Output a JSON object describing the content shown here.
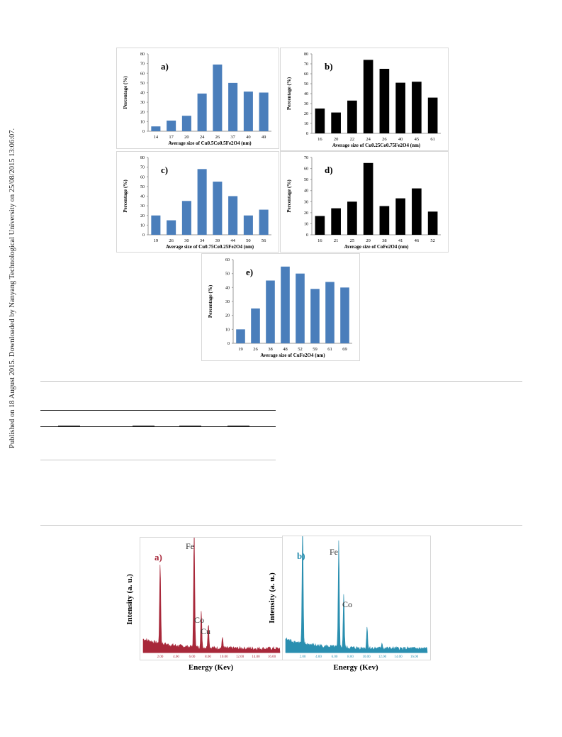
{
  "side_note": "Published on 18 August 2015. Downloaded by Nanyang Technological University on 25/08/2015 13:06:07.",
  "chart_data": [
    {
      "type": "bar",
      "annotation": "a)",
      "ylabel": "Percentage (%)",
      "xlabel": "Average size of Cu0.5Co0.5Fe2O4 (nm)",
      "color": "#4a7ebb",
      "categories": [
        "14",
        "17",
        "20",
        "24",
        "26",
        "37",
        "40",
        "49"
      ],
      "values": [
        5,
        11,
        16,
        39,
        69,
        50,
        41,
        40
      ],
      "ylim": [
        0,
        80
      ],
      "yticks": [
        0,
        10,
        20,
        30,
        40,
        50,
        60,
        70,
        80
      ]
    },
    {
      "type": "bar",
      "annotation": "b)",
      "ylabel": "Percentage (%)",
      "xlabel": "Average size of Cu0.25Co0.75Fe2O4 (nm)",
      "color": "#000000",
      "categories": [
        "16",
        "20",
        "22",
        "24",
        "26",
        "40",
        "45",
        "61"
      ],
      "values": [
        25,
        21,
        33,
        74,
        65,
        51,
        52,
        36
      ],
      "ylim": [
        0,
        80
      ],
      "yticks": [
        0,
        10,
        20,
        30,
        40,
        50,
        60,
        70,
        80
      ]
    },
    {
      "type": "bar",
      "annotation": "c)",
      "ylabel": "Percentage (%)",
      "xlabel": "Average size of Cu0.75Co0.25Fe2O4 (nm)",
      "color": "#4a7ebb",
      "categories": [
        "19",
        "26",
        "30",
        "34",
        "39",
        "44",
        "50",
        "56"
      ],
      "values": [
        20,
        15,
        35,
        68,
        55,
        40,
        20,
        26
      ],
      "ylim": [
        0,
        80
      ],
      "yticks": [
        0,
        10,
        20,
        30,
        40,
        50,
        60,
        70,
        80
      ]
    },
    {
      "type": "bar",
      "annotation": "d)",
      "ylabel": "Percentage (%)",
      "xlabel": "Average size of CoFe2O4 (nm)",
      "color": "#000000",
      "categories": [
        "16",
        "21",
        "25",
        "29",
        "38",
        "41",
        "46",
        "52"
      ],
      "values": [
        17,
        24,
        30,
        65,
        26,
        33,
        42,
        21
      ],
      "ylim": [
        0,
        70
      ],
      "yticks": [
        0,
        10,
        20,
        30,
        40,
        50,
        60,
        70
      ]
    },
    {
      "type": "bar",
      "annotation": "e)",
      "ylabel": "Percentage (%)",
      "xlabel": "Average size of CuFe2O4 (nm)",
      "color": "#4a7ebb",
      "categories": [
        "19",
        "26",
        "38",
        "48",
        "52",
        "59",
        "61",
        "69"
      ],
      "values": [
        10,
        25,
        45,
        55,
        50,
        39,
        44,
        40
      ],
      "ylim": [
        0,
        60
      ],
      "yticks": [
        0,
        10,
        20,
        30,
        40,
        50,
        60
      ]
    }
  ],
  "eds": [
    {
      "annotation": "a)",
      "peaks": [
        "Fe",
        "Co",
        "Cu"
      ],
      "ylabel": "Intensity (a. u.)",
      "xlabel": "Energy (Kev)",
      "xtick_labels": [
        "2.00",
        "4.00",
        "6.00",
        "8.00",
        "10.00",
        "12.00",
        "14.00",
        "16.00"
      ]
    },
    {
      "annotation": "b)",
      "peaks": [
        "Fe",
        "Co"
      ],
      "ylabel": "Intensity (a. u.)",
      "xlabel": "Energy (Kev)",
      "xtick_labels": [
        "2.00",
        "4.00",
        "6.00",
        "8.00",
        "10.00",
        "12.00",
        "14.00",
        "16.00"
      ]
    }
  ]
}
